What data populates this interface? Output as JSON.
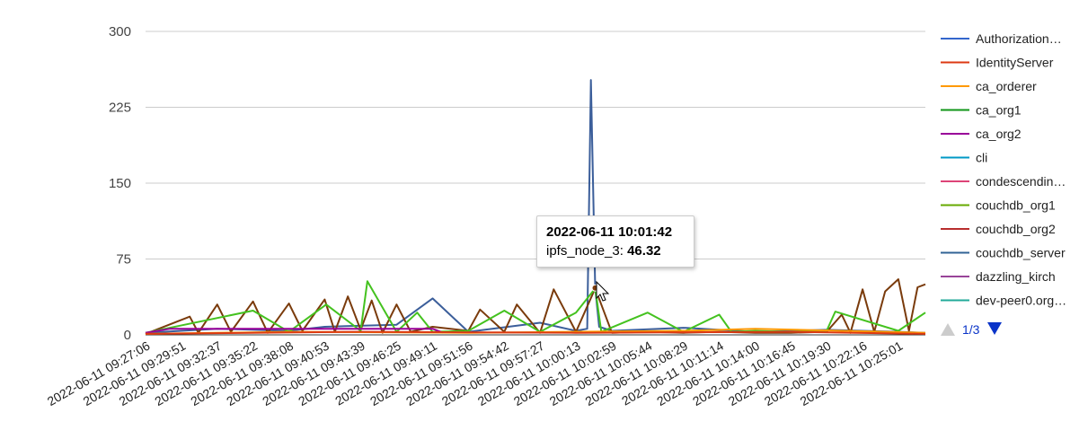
{
  "chart_data": {
    "type": "line",
    "yticks": [
      0,
      75,
      150,
      225,
      300
    ],
    "ylim": [
      0,
      300
    ],
    "grid": true,
    "legend_placement": "right",
    "x_tick_labels": [
      "2022-06-11 09:27:06",
      "2022-06-11 09:29:51",
      "2022-06-11 09:32:37",
      "2022-06-11 09:35:22",
      "2022-06-11 09:38:08",
      "2022-06-11 09:40:53",
      "2022-06-11 09:43:39",
      "2022-06-11 09:46:25",
      "2022-06-11 09:49:11",
      "2022-06-11 09:51:56",
      "2022-06-11 09:54:42",
      "2022-06-11 09:57:27",
      "2022-06-11 10:00:13",
      "2022-06-11 10:02:59",
      "2022-06-11 10:05:44",
      "2022-06-11 10:08:29",
      "2022-06-11 10:11:14",
      "2022-06-11 10:14:00",
      "2022-06-11 10:16:45",
      "2022-06-11 10:19:30",
      "2022-06-11 10:22:16",
      "2022-06-11 10:25:01"
    ],
    "x_range": [
      "2022-06-11 09:27:06",
      "2022-06-11 10:27:06"
    ],
    "legend": {
      "items": [
        {
          "label": "Authorization…",
          "color": "#3366cc"
        },
        {
          "label": "IdentityServer",
          "color": "#dc3912"
        },
        {
          "label": "ca_orderer",
          "color": "#ff9900"
        },
        {
          "label": "ca_org1",
          "color": "#109618"
        },
        {
          "label": "ca_org2",
          "color": "#990099"
        },
        {
          "label": "cli",
          "color": "#0099c6"
        },
        {
          "label": "condescendin…",
          "color": "#dd4477"
        },
        {
          "label": "couchdb_org1",
          "color": "#66aa00"
        },
        {
          "label": "couchdb_org2",
          "color": "#b82e2e"
        },
        {
          "label": "couchdb_server",
          "color": "#316395"
        },
        {
          "label": "dazzling_kirch",
          "color": "#994499"
        },
        {
          "label": "dev-peer0.org…",
          "color": "#22aa99"
        }
      ],
      "pager": "1/3"
    },
    "series": [
      {
        "name": "couchdb_server",
        "color": "#3b5e9a",
        "x": [
          "2022-06-11 09:27:06",
          "2022-06-11 09:32:37",
          "2022-06-11 09:38:08",
          "2022-06-11 09:40:53",
          "2022-06-11 09:46:25",
          "2022-06-11 09:49:11",
          "2022-06-11 09:51:56",
          "2022-06-11 09:57:27",
          "2022-06-11 10:00:13",
          "2022-06-11 10:01:05",
          "2022-06-11 10:01:22",
          "2022-06-11 10:01:42",
          "2022-06-11 10:02:00",
          "2022-06-11 10:02:59",
          "2022-06-11 10:08:29",
          "2022-06-11 10:14:00",
          "2022-06-11 10:19:30",
          "2022-06-11 10:25:01",
          "2022-06-11 10:27:06"
        ],
        "y": [
          2,
          6,
          4,
          8,
          10,
          36,
          3,
          12,
          4,
          6,
          252,
          46,
          8,
          4,
          7,
          3,
          5,
          3,
          2
        ]
      },
      {
        "name": "ipfs_node_3",
        "color": "#7a3b0c",
        "x": [
          "2022-06-11 09:27:06",
          "2022-06-11 09:30:30",
          "2022-06-11 09:31:10",
          "2022-06-11 09:32:37",
          "2022-06-11 09:33:40",
          "2022-06-11 09:35:22",
          "2022-06-11 09:36:30",
          "2022-06-11 09:38:08",
          "2022-06-11 09:39:10",
          "2022-06-11 09:40:53",
          "2022-06-11 09:41:40",
          "2022-06-11 09:42:40",
          "2022-06-11 09:43:39",
          "2022-06-11 09:44:30",
          "2022-06-11 09:45:20",
          "2022-06-11 09:46:25",
          "2022-06-11 09:47:30",
          "2022-06-11 09:49:11",
          "2022-06-11 09:51:56",
          "2022-06-11 09:52:50",
          "2022-06-11 09:54:42",
          "2022-06-11 09:55:40",
          "2022-06-11 09:57:27",
          "2022-06-11 09:58:30",
          "2022-06-11 10:00:13",
          "2022-06-11 10:01:42",
          "2022-06-11 10:02:59",
          "2022-06-11 10:05:44",
          "2022-06-11 10:08:29",
          "2022-06-11 10:11:14",
          "2022-06-11 10:14:00",
          "2022-06-11 10:16:45",
          "2022-06-11 10:19:30",
          "2022-06-11 10:20:40",
          "2022-06-11 10:21:20",
          "2022-06-11 10:22:16",
          "2022-06-11 10:23:10",
          "2022-06-11 10:24:00",
          "2022-06-11 10:25:01",
          "2022-06-11 10:25:50",
          "2022-06-11 10:26:30",
          "2022-06-11 10:27:06"
        ],
        "y": [
          1,
          18,
          2,
          30,
          3,
          33,
          2,
          31,
          4,
          35,
          3,
          38,
          5,
          34,
          2,
          30,
          3,
          8,
          4,
          25,
          3,
          30,
          2,
          45,
          3,
          46,
          2,
          3,
          2,
          3,
          2,
          2,
          3,
          20,
          2,
          45,
          3,
          43,
          55,
          4,
          47,
          50
        ]
      },
      {
        "name": "couchdb_org1",
        "color": "#44c21f",
        "x": [
          "2022-06-11 09:27:06",
          "2022-06-11 09:35:22",
          "2022-06-11 09:38:08",
          "2022-06-11 09:41:00",
          "2022-06-11 09:43:39",
          "2022-06-11 09:44:10",
          "2022-06-11 09:46:25",
          "2022-06-11 09:48:00",
          "2022-06-11 09:49:11",
          "2022-06-11 09:51:56",
          "2022-06-11 09:54:42",
          "2022-06-11 09:57:27",
          "2022-06-11 10:00:13",
          "2022-06-11 10:01:42",
          "2022-06-11 10:02:10",
          "2022-06-11 10:05:44",
          "2022-06-11 10:08:29",
          "2022-06-11 10:11:14",
          "2022-06-11 10:12:10",
          "2022-06-11 10:14:00",
          "2022-06-11 10:16:45",
          "2022-06-11 10:19:30",
          "2022-06-11 10:20:10",
          "2022-06-11 10:25:01",
          "2022-06-11 10:27:06"
        ],
        "y": [
          2,
          24,
          3,
          30,
          4,
          53,
          3,
          22,
          3,
          4,
          24,
          3,
          22,
          46,
          3,
          22,
          3,
          20,
          3,
          4,
          3,
          4,
          23,
          4,
          22
        ]
      },
      {
        "name": "ca_org2",
        "color": "#990099",
        "x": [
          "2022-06-11 09:27:06",
          "2022-06-11 09:29:00",
          "2022-06-11 09:49:11",
          "2022-06-11 09:50:00"
        ],
        "y": [
          2,
          6,
          6,
          2
        ]
      },
      {
        "name": "ca_orderer",
        "color": "#ff9900",
        "x": [
          "2022-06-11 09:27:06",
          "2022-06-11 09:38:08",
          "2022-06-11 09:51:56",
          "2022-06-11 10:08:29",
          "2022-06-11 10:14:00",
          "2022-06-11 10:27:06"
        ],
        "y": [
          1,
          3,
          2,
          4,
          6,
          2
        ]
      },
      {
        "name": "IdentityServer",
        "color": "#dc3912",
        "x": [
          "2022-06-11 09:27:06",
          "2022-06-11 09:43:39",
          "2022-06-11 10:00:13",
          "2022-06-11 10:16:45",
          "2022-06-11 10:27:06"
        ],
        "y": [
          1,
          3,
          2,
          3,
          1
        ]
      }
    ],
    "tooltip": {
      "title": "2022-06-11 10:01:42",
      "series": "ipfs_node_3",
      "value": "46.32"
    }
  }
}
